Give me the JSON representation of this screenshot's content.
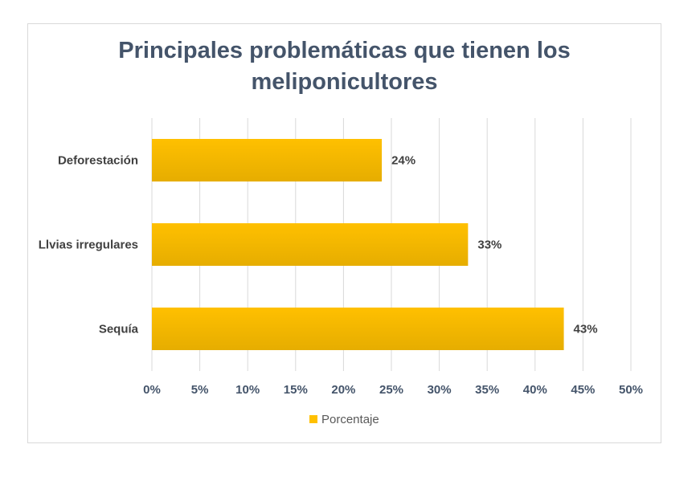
{
  "chart_data": {
    "type": "bar",
    "orientation": "horizontal",
    "title": "Principales problemáticas que tienen los meliponicultores",
    "categories": [
      "Deforestación",
      "Llvias irregulares",
      "Sequía"
    ],
    "series": [
      {
        "name": "Porcentaje",
        "values": [
          24,
          33,
          43
        ],
        "data_labels": [
          "24%",
          "33%",
          "43%"
        ]
      }
    ],
    "xlim": [
      0,
      50
    ],
    "xticks": [
      0,
      5,
      10,
      15,
      20,
      25,
      30,
      35,
      40,
      45,
      50
    ],
    "xtick_labels": [
      "0%",
      "5%",
      "10%",
      "15%",
      "20%",
      "25%",
      "30%",
      "35%",
      "40%",
      "45%",
      "50%"
    ],
    "grid": true,
    "legend": "bottom",
    "colors": {
      "bar_top": "#ffc000",
      "bar_bottom": "#e6ad00",
      "grid": "#d9d9d9",
      "title": "#44546a"
    }
  }
}
